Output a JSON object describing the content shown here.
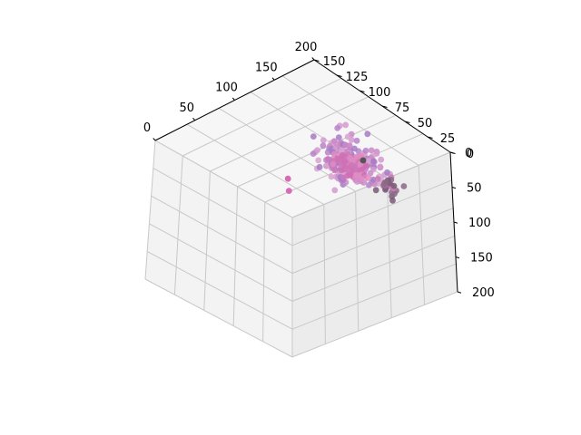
{
  "chart_data": {
    "type": "scatter",
    "projection": "3d",
    "title": "",
    "grid": true,
    "axes": {
      "top_left_axis": {
        "ticks": [
          "0",
          "50",
          "100",
          "150",
          "200"
        ],
        "range": [
          0,
          200
        ]
      },
      "top_right_axis": {
        "ticks": [
          "150",
          "125",
          "100",
          "75",
          "50",
          "25",
          "0"
        ],
        "range": [
          0,
          150
        ]
      },
      "right_axis": {
        "ticks": [
          "0",
          "50",
          "100",
          "150",
          "200"
        ],
        "range": [
          0,
          200
        ]
      }
    },
    "clusters": [
      {
        "a": 160,
        "b": 75,
        "c": 55,
        "spread": 18,
        "count": 220,
        "colors": [
          "#c98ac8",
          "#b784c8",
          "#d49ad0",
          "#a47cc4",
          "#dba3cf"
        ]
      },
      {
        "a": 175,
        "b": 90,
        "c": 85,
        "spread": 10,
        "count": 70,
        "colors": [
          "#d06fb4",
          "#cc78b8",
          "#e08cc2"
        ]
      },
      {
        "a": 185,
        "b": 60,
        "c": 95,
        "spread": 8,
        "count": 25,
        "colors": [
          "#7a5a78",
          "#8a6a86",
          "#c77bb5"
        ]
      }
    ],
    "outliers": [
      {
        "a": 200,
        "b": 100,
        "c": 100,
        "color": "#555555"
      },
      {
        "a": 150,
        "b": 140,
        "c": 150,
        "color": "#d86bb5"
      },
      {
        "a": 155,
        "b": 145,
        "c": 140,
        "color": "#d86bb5"
      }
    ],
    "colors": {
      "pane_left": "#f3f3f3",
      "pane_right": "#ececec",
      "pane_top": "#f6f6f6",
      "grid": "#c8c8c8",
      "axis_line": "#000000"
    }
  }
}
